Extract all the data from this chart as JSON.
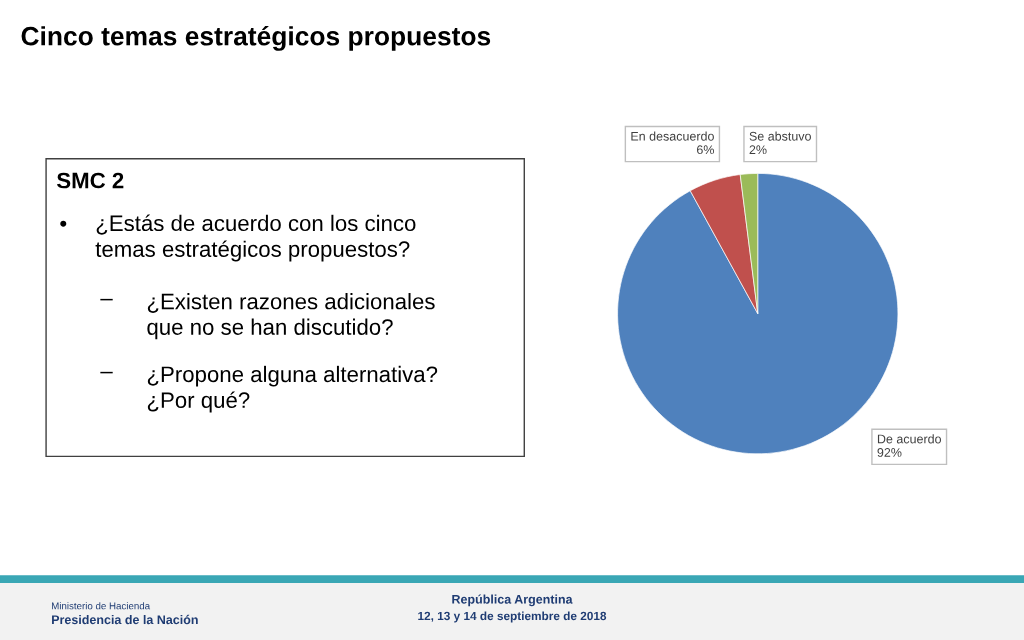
{
  "chart_data": {
    "type": "pie",
    "title": "Cinco temas estratégicos propuestos",
    "categories": [
      "De acuerdo",
      "En desacuerdo",
      "Se abstuvo"
    ],
    "values": [
      92,
      6,
      2
    ],
    "colors": [
      "#4f81bd",
      "#c0504d",
      "#9bbb59"
    ],
    "value_labels": [
      "92%",
      "6%",
      "2%"
    ],
    "annotations": [
      "SMC 2",
      "•",
      "¿Estás de acuerdo con los cinco\ntemas estratégicos propuestos?",
      "–",
      "¿Existen razones adicionales\nque no se han discutido?",
      "–",
      "¿Propone alguna alternativa?\n¿Por qué?",
      "Ministerio de Hacienda",
      "Presidencia de la Nación",
      "República Argentina",
      "12, 13 y 14 de septiembre de 2018"
    ]
  }
}
